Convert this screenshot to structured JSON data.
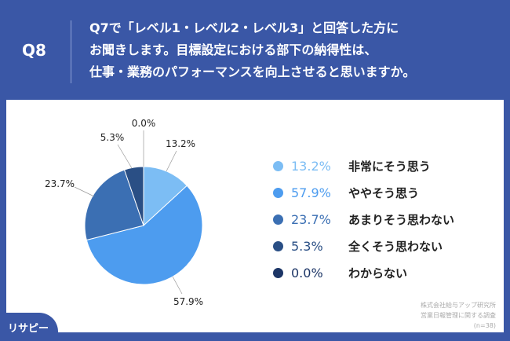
{
  "header": {
    "question_no": "Q8",
    "title_lines": [
      "Q7で「レベル1・レベル2・レベル3」と回答した方に",
      "お聞きします。目標設定における部下の納得性は、",
      "仕事・業務のパフォーマンスを向上させると思いますか。"
    ]
  },
  "chart_data": {
    "type": "pie",
    "start": "top",
    "direction": "clockwise",
    "slices": [
      {
        "label": "非常にそう思う",
        "value": 13.2,
        "display": "13.2%",
        "color": "#7cbdf4"
      },
      {
        "label": "ややそう思う",
        "value": 57.9,
        "display": "57.9%",
        "color": "#4d9cef"
      },
      {
        "label": "あまりそう思わない",
        "value": 23.7,
        "display": "23.7%",
        "color": "#3b6fb3"
      },
      {
        "label": "全くそう思わない",
        "value": 5.3,
        "display": "5.3%",
        "color": "#2a4f85"
      },
      {
        "label": "わからない",
        "value": 0.0,
        "display": "0.0%",
        "color": "#1c3566"
      }
    ]
  },
  "footer": {
    "source_lines": [
      "株式会社給与アップ研究所",
      "営業日報管理に関する調査",
      "(n=38)"
    ],
    "logo": "リサピー"
  }
}
